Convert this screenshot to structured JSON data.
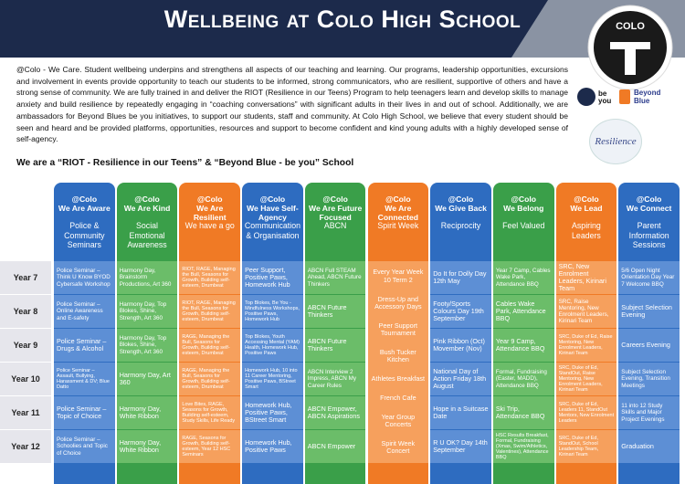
{
  "header": {
    "title": "Wellbeing at Colo High School"
  },
  "logos": {
    "school": "COLO",
    "be_you": "be you",
    "beyond_blue": "Beyond Blue",
    "riot": "Resilience"
  },
  "intro": "@Colo - We Care. Student wellbeing underpins and strengthens all aspects of our teaching and learning. Our programs, leadership opportunities, excursions and involvement in events provide opportunity to teach our students to be informed, strong communicators, who are resilient, supportive of others and have a strong sense of community. We are fully trained in and deliver the RIOT (Resilience in our Teens) Program to help teenagers learn and develop skills to manage anxiety and build resilience by repeatedly engaging in “coaching conversations” with significant adults in their lives in and out of school. Additionally, we are ambassadors for Beyond Blues be you initiatives, to support our students, staff and community. At Colo High School, we believe that every student should be seen and heard and be provided platforms, opportunities, resources and support to become confident and kind young adults with a highly developed sense of self-agency.",
  "subheading": "We are a “RIOT - Resilience in our Teens” & “Beyond Blue - be you” School",
  "table": {
    "years": [
      "Year 7",
      "Year 8",
      "Year 9",
      "Year 10",
      "Year 11",
      "Year 12"
    ],
    "columns": [
      {
        "tag": "@Colo",
        "title": "We Are Aware",
        "subtitle": "Police & Community Seminars",
        "color": "#2e6cc0",
        "tint": "#5d8fd5",
        "cells": [
          "Police Seminar – Think U Know BYOD Cybersafe Workshop",
          "Police Seminar – Online Awareness and E-safety",
          "Police Seminar – Drugs & Alcohol",
          "Police Seminar – Assault, Bullying, Harassment & DV; Blue Datto",
          "Police Seminar – Topic of Choice",
          "Police Seminar – Schoolies and Topic of Choice"
        ]
      },
      {
        "tag": "@Colo",
        "title": "We Are Kind",
        "subtitle": "Social Emotional Awareness",
        "color": "#3a9f49",
        "tint": "#6bbd69",
        "cells": [
          "Harmony Day, Brainstorm Productions, Art 360",
          "Harmony Day, Top Blokes, Shine, Strength, Art 360",
          "Harmony Day, Top Blokes, Shine, Strength, Art 360",
          "Harmony Day, Art 360",
          "Harmony Day, White Ribbon",
          "Harmony Day, White Ribbon"
        ]
      },
      {
        "tag": "@Colo",
        "title": "We Are Resilient",
        "subtitle": "We have a go",
        "color": "#f07a25",
        "tint": "#f6a05d",
        "cells": [
          "RIOT, RAGE, Managing the Bull, Seasons for Growth, Building self-esteem, Drumbeat",
          "RIOT, RAGE, Managing the Bull, Seasons for Growth, Building self-esteem, Drumbeat",
          "RAGE, Managing the Bull, Seasons for Growth, Building self-esteem, Drumbeat",
          "RAGE, Managing the Bull, Seasons for Growth, Building self-esteem, Drumbeat",
          "Love Bites, RAGE, Seasons for Growth, Building self-esteem, Study Skills, Life Ready",
          "RAGE, Seasons for Growth, Building self-esteem, Year 12 HSC Seminars"
        ]
      },
      {
        "tag": "@Colo",
        "title": "We Have Self-Agency",
        "subtitle": "Communication & Organisation",
        "color": "#2e6cc0",
        "tint": "#5d8fd5",
        "cells": [
          "Peer Support, Positive Paws, Homework Hub",
          "Top Blokes, Be You - Mindfulness Workshops, Positive Paws, Homework Hub",
          "Top Blokes, Youth Accessing Mental (YAM) Health, Homework Hub, Positive Paws",
          "Homework Hub, 10 into 11 Career Mentoring, Positive Paws, BStreet Smart",
          "Homework Hub, Positive Paws, BStreet Smart",
          "Homework Hub, Positive Paws"
        ]
      },
      {
        "tag": "@Colo",
        "title": "We Are Future Focused",
        "subtitle": "ABCN",
        "color": "#3a9f49",
        "tint": "#6bbd69",
        "cells": [
          "ABCN Full STEAM Ahead, ABCN Future Thinkers",
          "ABCN Future Thinkers",
          "ABCN Future Thinkers",
          "ABCN Interview 2 Impress, ABCN My Career Rules",
          "ABCN Empower, ABCN Aspirations",
          "ABCN Empower"
        ]
      },
      {
        "tag": "@Colo",
        "title": "We Are Connected",
        "subtitle": "Spirit Week",
        "color": "#f07a25",
        "tint": "#f6a05d",
        "items": [
          "Every Year Week 10 Term 2",
          "Dress-Up and Accessory Days",
          "Peer Support Tournament",
          "Bush Tucker Kitchen",
          "Athletes Breakfast",
          "French Cafe",
          "Year Group Concerts",
          "Spirit Week Concert"
        ]
      },
      {
        "tag": "@Colo",
        "title": "We Give Back",
        "subtitle": "Reciprocity",
        "color": "#2e6cc0",
        "tint": "#5d8fd5",
        "cells": [
          "Do It for Dolly Day 12th May",
          "Footy/Sports Colours Day 19th September",
          "Pink Ribbon (Oct) Movember (Nov)",
          "National Day of Action Friday 18th August",
          "Hope in a Suitcase Date",
          "R U OK? Day 14th September"
        ]
      },
      {
        "tag": "@Colo",
        "title": "We Belong",
        "subtitle": "Feel Valued",
        "color": "#3a9f49",
        "tint": "#6bbd69",
        "cells": [
          "Year 7 Camp, Cables Wake Park, Attendance BBQ",
          "Cables Wake Park, Attendance BBQ",
          "Year 9 Camp, Attendance BBQ",
          "Formal, Fundraising (Easter, MADD), Attendance BBQ",
          "Ski Trip, Attendance BBQ",
          "HSC Results Breakfast, Formal, Fundraising (Xmas, Swim/Athletics, Valentines), Attendance BBQ"
        ]
      },
      {
        "tag": "@Colo",
        "title": "We Lead",
        "subtitle": "Aspiring Leaders",
        "color": "#f07a25",
        "tint": "#f6a05d",
        "cells": [
          "SRC, New Enrolment Leaders, Kirinari Team",
          "SRC, Raise Mentoring, New Enrolment Leaders, Kirinari Team",
          "SRC, Duke of Ed, Raise Mentoring, New Enrolment Leaders, Kirinari Team",
          "SRC, Duke of Ed, StandOut, Raise Mentoring, New Enrolment Leaders, Kirinari Team",
          "SRC, Duke of Ed, Leaders 11, StandOut Mentors, New Enrolment Leaders",
          "SRC, Duke of Ed, StandOut, School Leadership Team, Kirinari Team"
        ]
      },
      {
        "tag": "@Colo",
        "title": "We Connect",
        "subtitle": "Parent Information Sessions",
        "color": "#2e6cc0",
        "tint": "#5d8fd5",
        "cells": [
          "5/6 Open Night Orientation Day Year 7 Welcome BBQ",
          "Subject Selection Evening",
          "Careers Evening",
          "Subject Selection Evening, Transition Meetings",
          "11 into 12 Study Skills and Major Project Evenings",
          "Graduation"
        ]
      }
    ]
  }
}
